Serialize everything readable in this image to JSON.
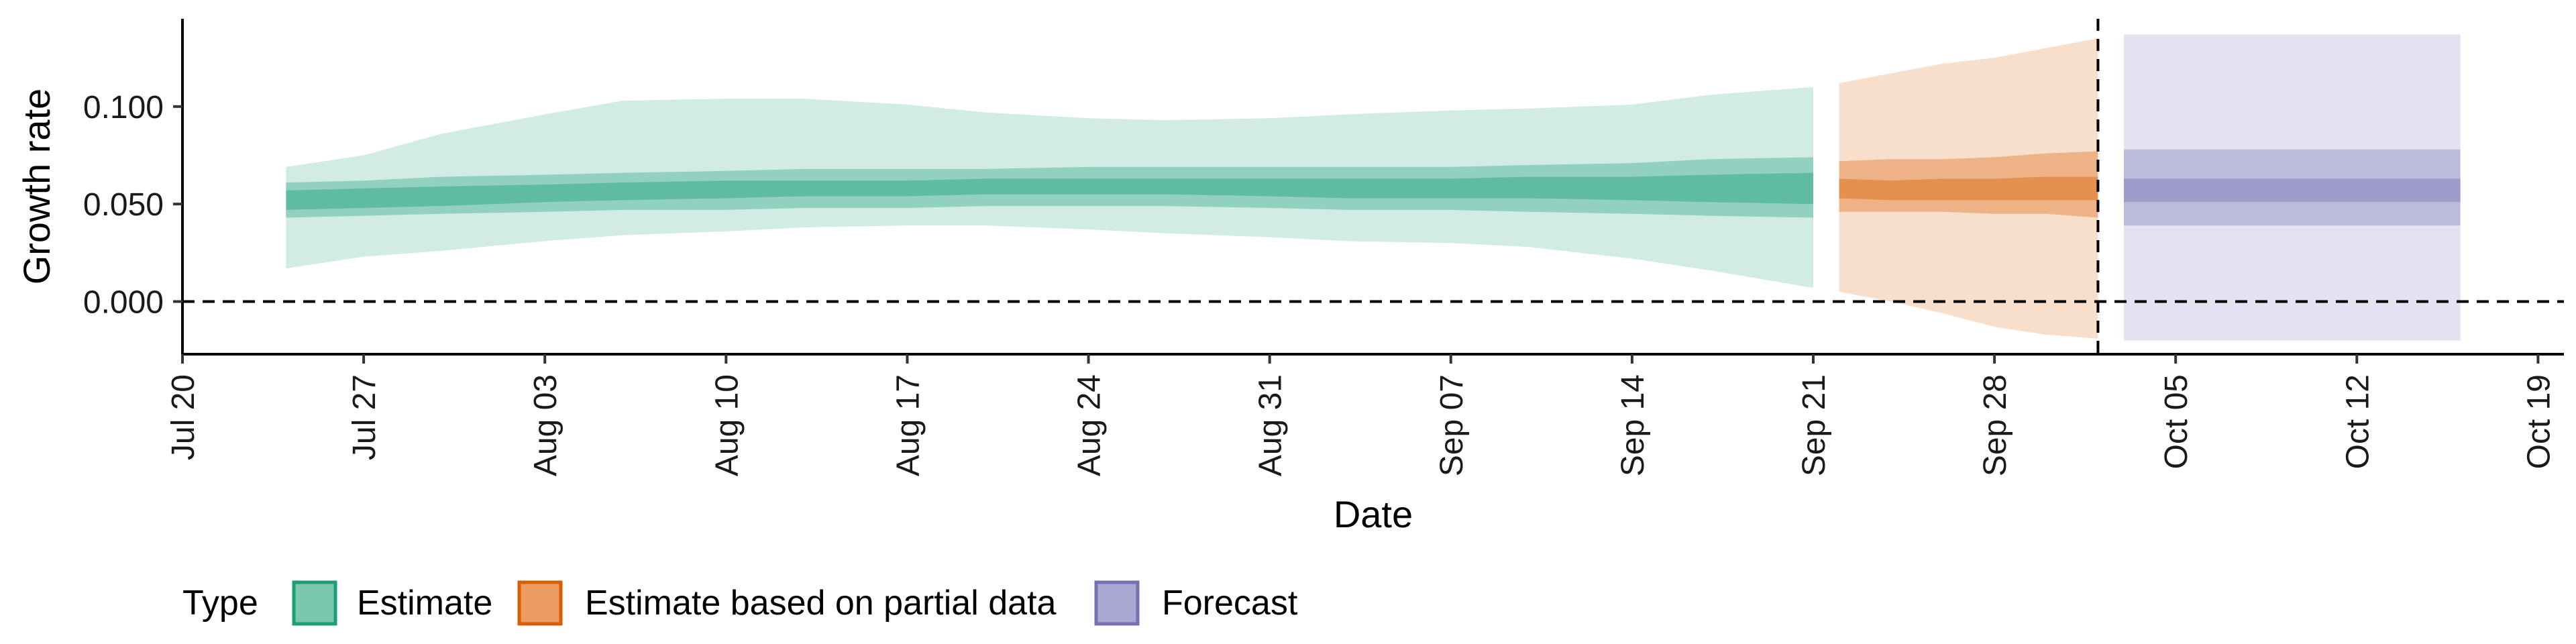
{
  "chart_data": {
    "type": "area",
    "xlabel": "Date",
    "ylabel": "Growth rate",
    "y_ticks": [
      "0.000",
      "0.050",
      "0.100"
    ],
    "y_tick_values": [
      0.0,
      0.05,
      0.1
    ],
    "ylim": [
      -0.027,
      0.145
    ],
    "x_tick_labels": [
      "Jul 20",
      "Jul 27",
      "Aug 03",
      "Aug 10",
      "Aug 17",
      "Aug 24",
      "Aug 31",
      "Sep 07",
      "Sep 14",
      "Sep 21",
      "Sep 28",
      "Oct 05",
      "Oct 12",
      "Oct 19"
    ],
    "x_tick_dates": [
      "2020-07-20",
      "2020-07-27",
      "2020-08-03",
      "2020-08-10",
      "2020-08-17",
      "2020-08-24",
      "2020-08-31",
      "2020-09-07",
      "2020-09-14",
      "2020-09-21",
      "2020-09-28",
      "2020-10-05",
      "2020-10-12",
      "2020-10-19"
    ],
    "xlim": [
      "2020-07-20",
      "2020-10-20"
    ],
    "reference_hline": 0.0,
    "reference_vline": "2020-10-02",
    "legend": {
      "title": "Type",
      "position": "bottom-left",
      "items": [
        {
          "label": "Estimate",
          "color": "#7cc8ae",
          "border": "#1b9e77"
        },
        {
          "label": "Estimate based on partial data",
          "color": "#ec9b63",
          "border": "#d95f02"
        },
        {
          "label": "Forecast",
          "color": "#aaa8d2",
          "border": "#7570b3"
        }
      ]
    },
    "series": [
      {
        "name": "Estimate",
        "color": "#1b9e77",
        "x": [
          "2020-07-24",
          "2020-07-27",
          "2020-07-30",
          "2020-08-03",
          "2020-08-06",
          "2020-08-10",
          "2020-08-13",
          "2020-08-17",
          "2020-08-20",
          "2020-08-24",
          "2020-08-27",
          "2020-08-31",
          "2020-09-03",
          "2020-09-07",
          "2020-09-10",
          "2020-09-14",
          "2020-09-17",
          "2020-09-21"
        ],
        "median": [
          0.052,
          0.053,
          0.054,
          0.055,
          0.056,
          0.057,
          0.058,
          0.058,
          0.059,
          0.059,
          0.059,
          0.059,
          0.058,
          0.058,
          0.058,
          0.058,
          0.058,
          0.058
        ],
        "lower_20": [
          0.047,
          0.048,
          0.049,
          0.051,
          0.052,
          0.053,
          0.054,
          0.054,
          0.055,
          0.055,
          0.055,
          0.054,
          0.053,
          0.053,
          0.053,
          0.052,
          0.051,
          0.05
        ],
        "upper_20": [
          0.057,
          0.058,
          0.059,
          0.06,
          0.061,
          0.062,
          0.062,
          0.062,
          0.063,
          0.063,
          0.063,
          0.063,
          0.063,
          0.063,
          0.064,
          0.064,
          0.065,
          0.066
        ],
        "lower_50": [
          0.043,
          0.044,
          0.045,
          0.046,
          0.047,
          0.047,
          0.048,
          0.048,
          0.049,
          0.049,
          0.049,
          0.048,
          0.047,
          0.047,
          0.046,
          0.045,
          0.044,
          0.043
        ],
        "upper_50": [
          0.061,
          0.062,
          0.064,
          0.065,
          0.066,
          0.067,
          0.068,
          0.068,
          0.068,
          0.069,
          0.069,
          0.069,
          0.069,
          0.069,
          0.07,
          0.071,
          0.073,
          0.074
        ],
        "lower_90": [
          0.017,
          0.023,
          0.026,
          0.031,
          0.034,
          0.036,
          0.038,
          0.039,
          0.039,
          0.037,
          0.035,
          0.033,
          0.031,
          0.03,
          0.028,
          0.022,
          0.016,
          0.007
        ],
        "upper_90": [
          0.069,
          0.075,
          0.086,
          0.096,
          0.103,
          0.104,
          0.104,
          0.101,
          0.097,
          0.094,
          0.093,
          0.094,
          0.096,
          0.098,
          0.099,
          0.101,
          0.106,
          0.11
        ]
      },
      {
        "name": "Estimate based on partial data",
        "color": "#d95f02",
        "x": [
          "2020-09-22",
          "2020-09-24",
          "2020-09-26",
          "2020-09-28",
          "2020-09-30",
          "2020-10-02"
        ],
        "median": [
          0.058,
          0.057,
          0.058,
          0.058,
          0.059,
          0.058
        ],
        "lower_20": [
          0.053,
          0.052,
          0.052,
          0.052,
          0.052,
          0.052
        ],
        "upper_20": [
          0.063,
          0.062,
          0.063,
          0.063,
          0.064,
          0.064
        ],
        "lower_50": [
          0.046,
          0.046,
          0.046,
          0.045,
          0.045,
          0.043
        ],
        "upper_50": [
          0.072,
          0.073,
          0.073,
          0.074,
          0.076,
          0.077
        ],
        "lower_90": [
          0.005,
          0.0,
          -0.006,
          -0.013,
          -0.017,
          -0.019
        ],
        "upper_90": [
          0.112,
          0.117,
          0.122,
          0.125,
          0.13,
          0.135
        ]
      },
      {
        "name": "Forecast",
        "color": "#7570b3",
        "x": [
          "2020-10-03",
          "2020-10-16"
        ],
        "median": [
          0.057,
          0.057
        ],
        "lower_20": [
          0.051,
          0.051
        ],
        "upper_20": [
          0.063,
          0.063
        ],
        "lower_50": [
          0.039,
          0.039
        ],
        "upper_50": [
          0.078,
          0.078
        ],
        "lower_90": [
          -0.02,
          -0.02
        ],
        "upper_90": [
          0.137,
          0.137
        ]
      }
    ]
  }
}
